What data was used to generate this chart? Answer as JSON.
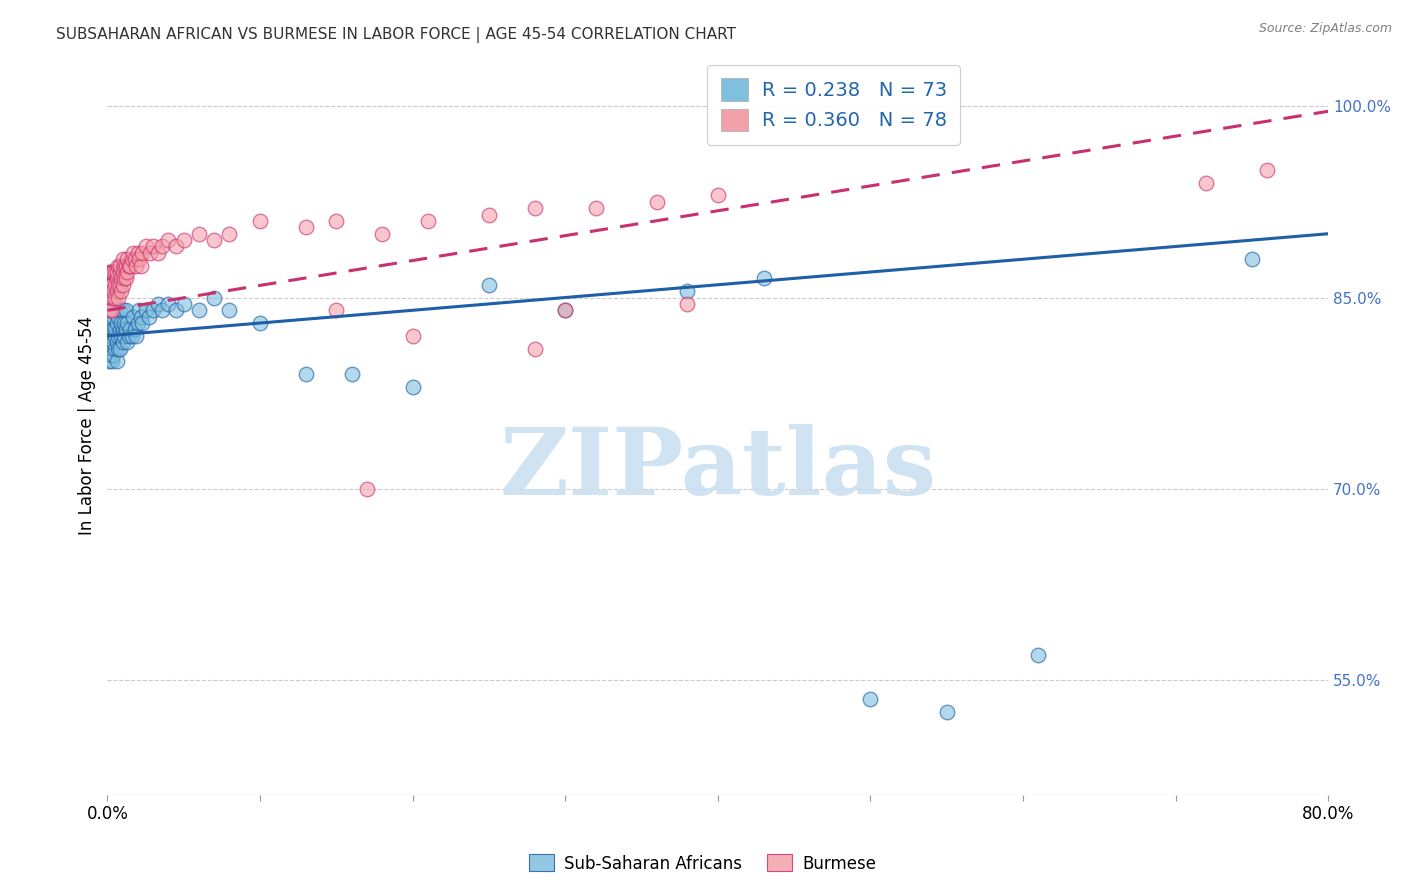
{
  "title": "SUBSAHARAN AFRICAN VS BURMESE IN LABOR FORCE | AGE 45-54 CORRELATION CHART",
  "source": "Source: ZipAtlas.com",
  "ylabel": "In Labor Force | Age 45-54",
  "right_yticks": [
    "100.0%",
    "85.0%",
    "70.0%",
    "55.0%"
  ],
  "right_ytick_vals": [
    1.0,
    0.85,
    0.7,
    0.55
  ],
  "bottom_legend_labels": [
    "Sub-Saharan Africans",
    "Burmese"
  ],
  "legend_blue": {
    "R": 0.238,
    "N": 73
  },
  "legend_pink": {
    "R": 0.36,
    "N": 78
  },
  "blue_color": "#7fbfdf",
  "pink_color": "#f4a0aa",
  "blue_line_color": "#1f5fa6",
  "pink_line_color": "#c93070",
  "watermark": "ZIPatlas",
  "watermark_color": "#c8dff0",
  "background_color": "#ffffff",
  "xlim": [
    0.0,
    0.8
  ],
  "ylim": [
    0.46,
    1.04
  ],
  "blue_scatter": {
    "x": [
      0.001,
      0.001,
      0.001,
      0.002,
      0.002,
      0.002,
      0.002,
      0.003,
      0.003,
      0.003,
      0.003,
      0.003,
      0.004,
      0.004,
      0.004,
      0.004,
      0.005,
      0.005,
      0.005,
      0.005,
      0.006,
      0.006,
      0.006,
      0.007,
      0.007,
      0.007,
      0.008,
      0.008,
      0.008,
      0.009,
      0.009,
      0.01,
      0.01,
      0.01,
      0.011,
      0.011,
      0.012,
      0.012,
      0.013,
      0.013,
      0.014,
      0.015,
      0.016,
      0.017,
      0.018,
      0.019,
      0.02,
      0.021,
      0.022,
      0.023,
      0.025,
      0.027,
      0.03,
      0.033,
      0.036,
      0.04,
      0.045,
      0.05,
      0.06,
      0.07,
      0.08,
      0.1,
      0.13,
      0.16,
      0.2,
      0.25,
      0.3,
      0.38,
      0.43,
      0.5,
      0.55,
      0.61,
      0.75
    ],
    "y": [
      0.82,
      0.83,
      0.8,
      0.825,
      0.815,
      0.805,
      0.835,
      0.82,
      0.81,
      0.8,
      0.83,
      0.84,
      0.825,
      0.815,
      0.805,
      0.835,
      0.82,
      0.81,
      0.825,
      0.84,
      0.815,
      0.83,
      0.8,
      0.82,
      0.81,
      0.835,
      0.825,
      0.84,
      0.81,
      0.82,
      0.83,
      0.825,
      0.815,
      0.84,
      0.82,
      0.83,
      0.825,
      0.84,
      0.815,
      0.83,
      0.82,
      0.825,
      0.82,
      0.835,
      0.825,
      0.82,
      0.83,
      0.84,
      0.835,
      0.83,
      0.84,
      0.835,
      0.84,
      0.845,
      0.84,
      0.845,
      0.84,
      0.845,
      0.84,
      0.85,
      0.84,
      0.83,
      0.79,
      0.79,
      0.78,
      0.86,
      0.84,
      0.855,
      0.865,
      0.535,
      0.525,
      0.57,
      0.88
    ]
  },
  "pink_scatter": {
    "x": [
      0.001,
      0.001,
      0.001,
      0.001,
      0.002,
      0.002,
      0.002,
      0.002,
      0.003,
      0.003,
      0.003,
      0.003,
      0.003,
      0.004,
      0.004,
      0.004,
      0.005,
      0.005,
      0.005,
      0.006,
      0.006,
      0.006,
      0.007,
      0.007,
      0.007,
      0.008,
      0.008,
      0.008,
      0.009,
      0.009,
      0.01,
      0.01,
      0.01,
      0.011,
      0.011,
      0.012,
      0.012,
      0.013,
      0.013,
      0.014,
      0.015,
      0.016,
      0.017,
      0.018,
      0.019,
      0.02,
      0.021,
      0.022,
      0.023,
      0.025,
      0.028,
      0.03,
      0.033,
      0.036,
      0.04,
      0.045,
      0.05,
      0.06,
      0.07,
      0.08,
      0.1,
      0.13,
      0.15,
      0.18,
      0.21,
      0.25,
      0.28,
      0.32,
      0.36,
      0.4,
      0.15,
      0.17,
      0.2,
      0.28,
      0.3,
      0.38,
      0.72,
      0.76
    ],
    "y": [
      0.85,
      0.86,
      0.84,
      0.87,
      0.86,
      0.85,
      0.87,
      0.84,
      0.86,
      0.85,
      0.84,
      0.87,
      0.86,
      0.85,
      0.87,
      0.855,
      0.86,
      0.87,
      0.85,
      0.865,
      0.855,
      0.87,
      0.86,
      0.875,
      0.85,
      0.87,
      0.86,
      0.875,
      0.865,
      0.855,
      0.87,
      0.88,
      0.86,
      0.875,
      0.865,
      0.875,
      0.865,
      0.88,
      0.87,
      0.875,
      0.875,
      0.88,
      0.885,
      0.88,
      0.875,
      0.885,
      0.88,
      0.875,
      0.885,
      0.89,
      0.885,
      0.89,
      0.885,
      0.89,
      0.895,
      0.89,
      0.895,
      0.9,
      0.895,
      0.9,
      0.91,
      0.905,
      0.91,
      0.9,
      0.91,
      0.915,
      0.92,
      0.92,
      0.925,
      0.93,
      0.84,
      0.7,
      0.82,
      0.81,
      0.84,
      0.845,
      0.94,
      0.95
    ]
  }
}
